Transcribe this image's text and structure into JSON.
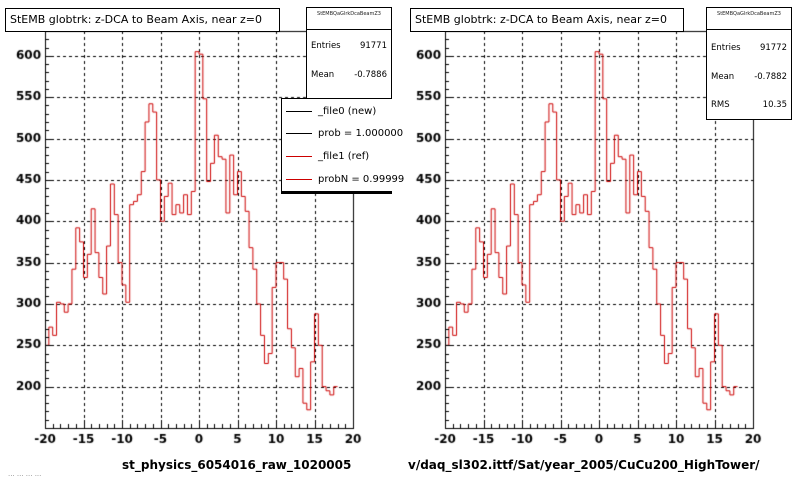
{
  "panels": [
    {
      "title": "StEMB globtrk: z-DCA to Beam Axis, near z=0",
      "stats": {
        "header": "StEMBQaGlrkDcaBeamZ3",
        "rows": [
          {
            "label": "Entries",
            "value": "91771"
          },
          {
            "label": "Mean",
            "value": "-0.7886"
          }
        ]
      },
      "legend": [
        {
          "label": "_file0 (new)",
          "color": "#000000"
        },
        {
          "label": "prob = 1.000000",
          "color": "#000000"
        },
        {
          "label": "_file1 (ref)",
          "color": "#cc0000"
        },
        {
          "label": "probN = 0.99999",
          "color": "#cc0000"
        }
      ],
      "footer": "st_physics_6054016_raw_1020005"
    },
    {
      "title": "StEMB globtrk: z-DCA to Beam Axis, near z=0",
      "stats": {
        "header": "StEMBQaGlrkDcaBeamZ3",
        "rows": [
          {
            "label": "Entries",
            "value": "91772"
          },
          {
            "label": "Mean",
            "value": "-0.7882"
          },
          {
            "label": "RMS",
            "value": "10.35"
          }
        ]
      },
      "footer": "v/daq_sl302.ittf/Sat/year_2005/CuCu200_HighTower/"
    }
  ],
  "smudge_text": "... ... ... ...",
  "chart_data": {
    "type": "line",
    "subtype": "step-histogram",
    "xlim": [
      -20,
      20
    ],
    "ylim": [
      150,
      630
    ],
    "x_ticks": [
      -20,
      -15,
      -10,
      -5,
      0,
      5,
      10,
      15,
      20
    ],
    "y_ticks": [
      200,
      250,
      300,
      350,
      400,
      450,
      500,
      550,
      600
    ],
    "grid": true,
    "bin_width": 0.5,
    "x_start": -20,
    "series": [
      {
        "name": "_file1 (ref)",
        "color": "#cc0000",
        "values": [
          250,
          272,
          262,
          302,
          300,
          290,
          300,
          342,
          392,
          375,
          332,
          360,
          415,
          362,
          332,
          312,
          370,
          445,
          408,
          350,
          323,
          302,
          420,
          424,
          432,
          460,
          520,
          542,
          532,
          450,
          400,
          430,
          446,
          408,
          420,
          410,
          432,
          408,
          436,
          605,
          602,
          548,
          448,
          470,
          504,
          478,
          475,
          410,
          480,
          432,
          460,
          430,
          412,
          368,
          342,
          300,
          262,
          228,
          240,
          320,
          350,
          350,
          330,
          270,
          247,
          212,
          222,
          180,
          172,
          230,
          288,
          250,
          200,
          195,
          190,
          200
        ]
      }
    ]
  }
}
